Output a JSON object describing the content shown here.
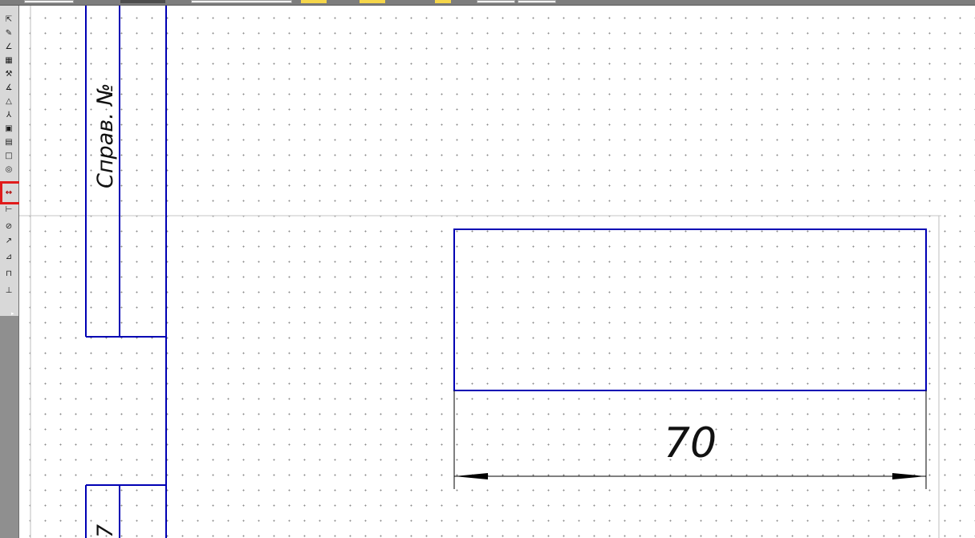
{
  "toolbar_left": {
    "tools": [
      {
        "icon": "select-icon",
        "glyph": "⇱"
      },
      {
        "icon": "edit-icon",
        "glyph": "✎"
      },
      {
        "icon": "graph-icon",
        "glyph": "∠"
      },
      {
        "icon": "grid-icon",
        "glyph": "▦"
      },
      {
        "icon": "hammer-icon",
        "glyph": "⚒"
      },
      {
        "icon": "angle-icon",
        "glyph": "∡"
      },
      {
        "icon": "triangle-icon",
        "glyph": "△"
      },
      {
        "icon": "y-icon",
        "glyph": "⅄"
      },
      {
        "icon": "save-icon",
        "glyph": "▣"
      },
      {
        "icon": "page-icon",
        "glyph": "▤"
      },
      {
        "icon": "frame-icon",
        "glyph": "□"
      },
      {
        "icon": "view-icon",
        "glyph": "◎"
      },
      {
        "icon": "linear-dimension-icon",
        "glyph": "↔",
        "selected": true
      },
      {
        "icon": "dimension-icon",
        "glyph": "⊢"
      },
      {
        "icon": "circle-dimension-icon",
        "glyph": "⊘"
      },
      {
        "icon": "arc-dimension-icon",
        "glyph": "↗"
      },
      {
        "icon": "angular-dimension-icon",
        "glyph": "⊿"
      },
      {
        "icon": "table-icon",
        "glyph": "⊓"
      },
      {
        "icon": "roughness-icon",
        "glyph": "⊥"
      }
    ]
  },
  "drawing": {
    "sheet_label": "Справ. №",
    "sheet_label_partial": "7",
    "dimension_value": "70",
    "line_color": "#0000b4",
    "dimension_color": "#000000"
  }
}
